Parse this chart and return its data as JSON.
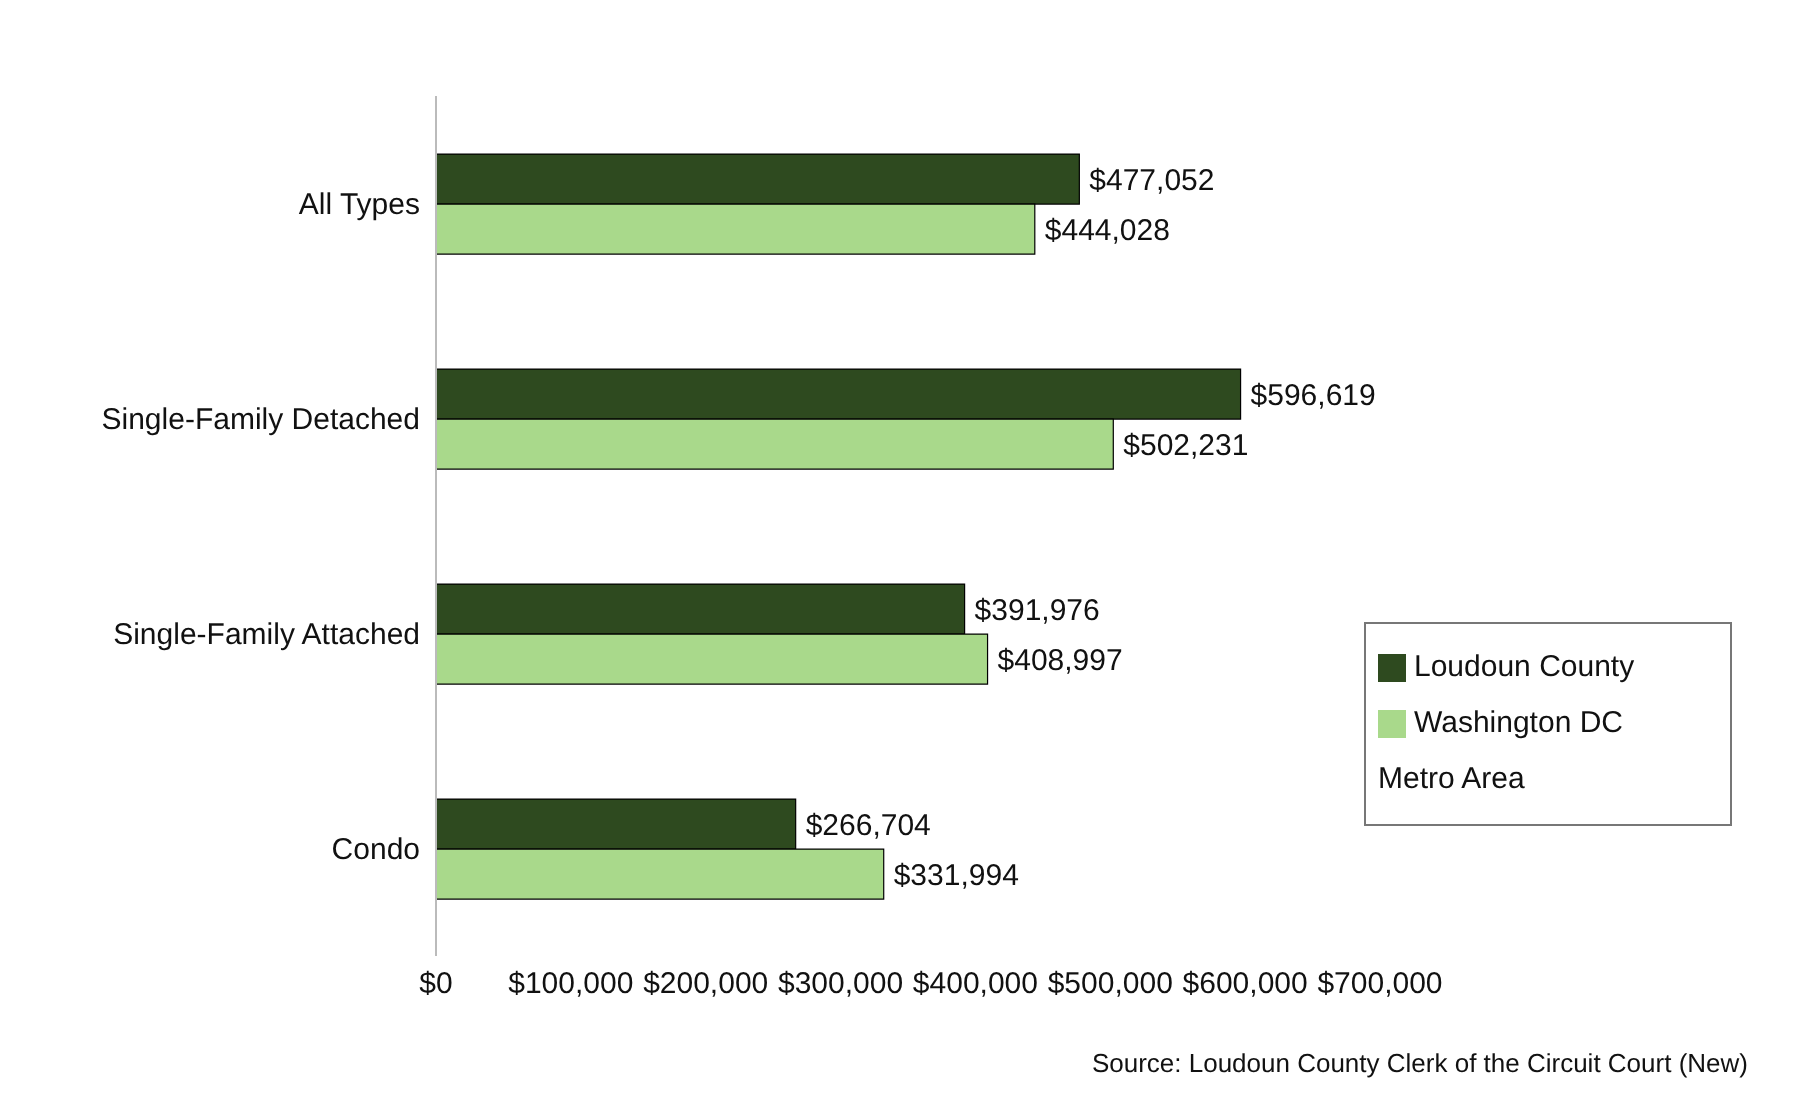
{
  "chart_data": {
    "type": "bar",
    "orientation": "horizontal",
    "categories": [
      "All Types",
      "Single-Family Detached",
      "Single-Family Attached",
      "Condo"
    ],
    "series": [
      {
        "name": "Loudoun County",
        "color": "#2e4a1f",
        "values": [
          477052,
          596619,
          391976,
          266704
        ],
        "value_labels": [
          "$477,052",
          "$596,619",
          "$391,976",
          "$266,704"
        ]
      },
      {
        "name": "Washington DC Metro Area",
        "color": "#a9d98b",
        "values": [
          444028,
          502231,
          408997,
          331994
        ],
        "value_labels": [
          "$444,028",
          "$502,231",
          "$408,997",
          "$331,994"
        ]
      }
    ],
    "xlim": [
      0,
      700000
    ],
    "xticks": [
      {
        "value": 0,
        "label": "$0"
      },
      {
        "value": 100000,
        "label": "$100,000"
      },
      {
        "value": 200000,
        "label": "$200,000"
      },
      {
        "value": 300000,
        "label": "$300,000"
      },
      {
        "value": 400000,
        "label": "$400,000"
      },
      {
        "value": 500000,
        "label": "$500,000"
      },
      {
        "value": 600000,
        "label": "$600,000"
      },
      {
        "value": 700000,
        "label": "$700,000"
      }
    ],
    "grid": false,
    "legend": "bottom right",
    "annotations": [
      "Source: Loudoun County Clerk of the Circuit Court (New)"
    ]
  }
}
